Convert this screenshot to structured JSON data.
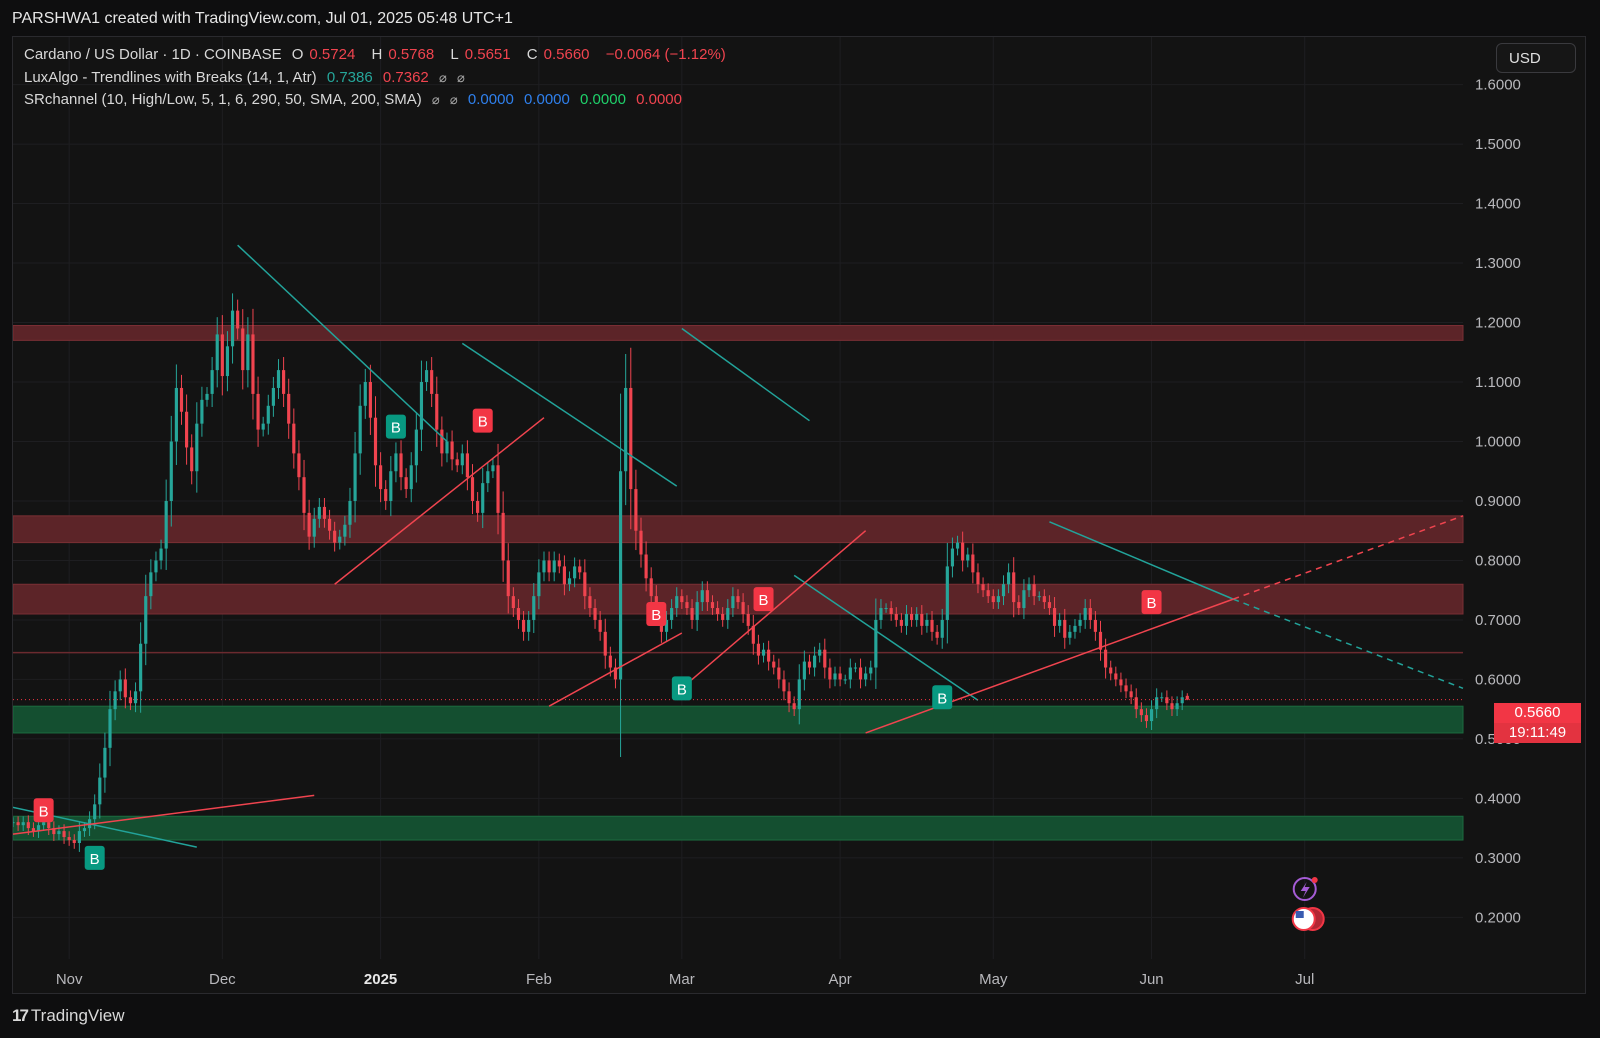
{
  "header": {
    "attribution": "PARSHWA1 created with TradingView.com, Jul 01, 2025 05:48 UTC+1"
  },
  "legend": {
    "symbol": "Cardano / US Dollar · 1D · COINBASE",
    "o_label": "O",
    "o_value": "0.5724",
    "h_label": "H",
    "h_value": "0.5768",
    "l_label": "L",
    "l_value": "0.5651",
    "c_label": "C",
    "c_value": "0.5660",
    "change": "−0.0064 (−1.12%)",
    "ind1_name": "LuxAlgo - Trendlines with Breaks (14, 1, Atr)",
    "ind1_v1": "0.7386",
    "ind1_v2": "0.7362",
    "ind2_name": "SRchannel (10, High/Low, 5, 1, 6, 290, 50, SMA, 200, SMA)",
    "ind2_v1": "0.0000",
    "ind2_v2": "0.0000",
    "ind2_v3": "0.0000",
    "ind2_v4": "0.0000",
    "hidden_icon": "⌀"
  },
  "currency_button": "USD",
  "price_label": {
    "price": "0.5660",
    "countdown": "19:11:49"
  },
  "footer": {
    "brand": "TradingView",
    "brand_mark": "17"
  },
  "colors": {
    "up": "#26a69a",
    "down": "#f0444f",
    "resistance_zone": "#5c2428",
    "support_zone": "#144f30",
    "trend_down": "#22a39a",
    "trend_up": "#f0444f",
    "background": "#131313"
  },
  "chart_data": {
    "type": "candlestick",
    "y_axis": {
      "ticks": [
        "1.6000",
        "1.5000",
        "1.4000",
        "1.3000",
        "1.2000",
        "1.1000",
        "1.0000",
        "0.9000",
        "0.8000",
        "0.7000",
        "0.6000",
        "0.5000",
        "0.4000",
        "0.3000",
        "0.2000"
      ],
      "ylim": [
        0.13,
        1.68
      ]
    },
    "x_axis": {
      "ticks": [
        {
          "label": "Nov",
          "date": "2024-11-01"
        },
        {
          "label": "Dec",
          "date": "2024-12-01"
        },
        {
          "label": "2025",
          "date": "2025-01-01",
          "bold": true
        },
        {
          "label": "Feb",
          "date": "2025-02-01"
        },
        {
          "label": "Mar",
          "date": "2025-03-01"
        },
        {
          "label": "Apr",
          "date": "2025-04-01"
        },
        {
          "label": "May",
          "date": "2025-05-01"
        },
        {
          "label": "Jun",
          "date": "2025-06-01"
        },
        {
          "label": "Jul",
          "date": "2025-07-01"
        }
      ],
      "xlim": [
        "2024-10-21",
        "2025-08-01"
      ]
    },
    "close_series": {
      "start_date": "2024-10-21",
      "values": [
        0.36,
        0.355,
        0.36,
        0.35,
        0.345,
        0.355,
        0.36,
        0.35,
        0.34,
        0.345,
        0.335,
        0.33,
        0.325,
        0.345,
        0.35,
        0.365,
        0.39,
        0.435,
        0.485,
        0.55,
        0.58,
        0.6,
        0.57,
        0.56,
        0.58,
        0.66,
        0.74,
        0.78,
        0.8,
        0.82,
        0.9,
        1.0,
        1.09,
        1.05,
        0.99,
        0.95,
        1.03,
        1.07,
        1.08,
        1.12,
        1.18,
        1.11,
        1.16,
        1.22,
        1.19,
        1.12,
        1.18,
        1.08,
        1.02,
        1.03,
        1.06,
        1.09,
        1.12,
        1.08,
        1.03,
        0.98,
        0.94,
        0.88,
        0.84,
        0.87,
        0.89,
        0.87,
        0.85,
        0.83,
        0.84,
        0.86,
        0.9,
        0.98,
        1.06,
        1.1,
        1.04,
        0.96,
        0.92,
        0.9,
        0.95,
        0.98,
        0.94,
        0.92,
        0.96,
        1.02,
        1.1,
        1.12,
        1.08,
        1.02,
        0.98,
        1.0,
        0.97,
        0.96,
        0.98,
        0.94,
        0.9,
        0.88,
        0.93,
        0.95,
        0.96,
        0.88,
        0.8,
        0.74,
        0.72,
        0.7,
        0.68,
        0.7,
        0.74,
        0.78,
        0.8,
        0.78,
        0.8,
        0.79,
        0.76,
        0.77,
        0.79,
        0.78,
        0.74,
        0.72,
        0.7,
        0.68,
        0.64,
        0.62,
        0.6,
        0.95,
        1.09,
        0.92,
        0.85,
        0.81,
        0.77,
        0.74,
        0.71,
        0.68,
        0.7,
        0.72,
        0.74,
        0.73,
        0.72,
        0.7,
        0.73,
        0.75,
        0.73,
        0.72,
        0.71,
        0.7,
        0.72,
        0.74,
        0.73,
        0.71,
        0.69,
        0.66,
        0.64,
        0.65,
        0.63,
        0.62,
        0.6,
        0.58,
        0.56,
        0.55,
        0.6,
        0.63,
        0.62,
        0.64,
        0.65,
        0.62,
        0.6,
        0.61,
        0.6,
        0.6,
        0.62,
        0.62,
        0.6,
        0.61,
        0.62,
        0.7,
        0.72,
        0.72,
        0.71,
        0.7,
        0.69,
        0.71,
        0.7,
        0.71,
        0.69,
        0.7,
        0.68,
        0.67,
        0.7,
        0.79,
        0.82,
        0.83,
        0.8,
        0.81,
        0.78,
        0.76,
        0.75,
        0.74,
        0.73,
        0.74,
        0.76,
        0.78,
        0.73,
        0.72,
        0.75,
        0.76,
        0.74,
        0.74,
        0.73,
        0.72,
        0.69,
        0.7,
        0.67,
        0.68,
        0.69,
        0.7,
        0.72,
        0.7,
        0.68,
        0.65,
        0.62,
        0.61,
        0.6,
        0.59,
        0.58,
        0.57,
        0.55,
        0.54,
        0.53,
        0.55,
        0.57,
        0.57,
        0.56,
        0.55,
        0.56,
        0.57,
        0.566
      ],
      "last": {
        "open": 0.5724,
        "high": 0.5768,
        "low": 0.5651,
        "close": 0.566
      }
    },
    "support_resistance_zones": [
      {
        "type": "resistance",
        "low": 1.17,
        "high": 1.195
      },
      {
        "type": "resistance",
        "low": 0.83,
        "high": 0.875
      },
      {
        "type": "resistance",
        "low": 0.71,
        "high": 0.76
      },
      {
        "type": "support",
        "low": 0.51,
        "high": 0.555
      },
      {
        "type": "support",
        "low": 0.33,
        "high": 0.37
      }
    ],
    "level_line": 0.645,
    "trendlines": [
      {
        "color": "down",
        "from": [
          "2024-12-04",
          1.33
        ],
        "to": [
          "2025-01-14",
          1.0
        ]
      },
      {
        "color": "down",
        "from": [
          "2025-01-17",
          1.165
        ],
        "to": [
          "2025-02-28",
          0.925
        ]
      },
      {
        "color": "down",
        "from": [
          "2025-03-01",
          1.19
        ],
        "to": [
          "2025-03-26",
          1.035
        ]
      },
      {
        "color": "down",
        "from": [
          "2025-03-23",
          0.775
        ],
        "to": [
          "2025-04-28",
          0.565
        ]
      },
      {
        "color": "down",
        "from": [
          "2025-05-12",
          0.865
        ],
        "to": [
          "2025-06-17",
          0.735
        ]
      },
      {
        "color": "down",
        "from": [
          "2025-06-17",
          0.735
        ],
        "to": [
          "2025-08-01",
          0.585
        ],
        "dashed": true
      },
      {
        "color": "down",
        "from": [
          "2024-10-21",
          0.385
        ],
        "to": [
          "2024-11-26",
          0.318
        ]
      },
      {
        "color": "up",
        "from": [
          "2024-12-23",
          0.76
        ],
        "to": [
          "2025-02-02",
          1.04
        ]
      },
      {
        "color": "up",
        "from": [
          "2025-02-03",
          0.555
        ],
        "to": [
          "2025-03-01",
          0.678
        ]
      },
      {
        "color": "up",
        "from": [
          "2025-02-28",
          0.578
        ],
        "to": [
          "2025-04-06",
          0.85
        ]
      },
      {
        "color": "up",
        "from": [
          "2025-04-06",
          0.51
        ],
        "to": [
          "2025-06-17",
          0.735
        ]
      },
      {
        "color": "up",
        "from": [
          "2025-06-17",
          0.735
        ],
        "to": [
          "2025-08-01",
          0.875
        ],
        "dashed": true
      },
      {
        "color": "up",
        "from": [
          "2024-10-21",
          0.34
        ],
        "to": [
          "2024-12-19",
          0.405
        ]
      }
    ],
    "signals": [
      {
        "label": "B",
        "kind": "bearish",
        "date": "2024-10-27",
        "price": 0.38
      },
      {
        "label": "B",
        "kind": "bullish",
        "date": "2024-11-06",
        "price": 0.3
      },
      {
        "label": "B",
        "kind": "bullish",
        "date": "2025-01-04",
        "price": 1.025
      },
      {
        "label": "B",
        "kind": "bearish",
        "date": "2025-01-21",
        "price": 1.035
      },
      {
        "label": "B",
        "kind": "bearish",
        "date": "2025-02-24",
        "price": 0.71
      },
      {
        "label": "B",
        "kind": "bullish",
        "date": "2025-03-01",
        "price": 0.585
      },
      {
        "label": "B",
        "kind": "bearish",
        "date": "2025-03-17",
        "price": 0.735
      },
      {
        "label": "B",
        "kind": "bullish",
        "date": "2025-04-21",
        "price": 0.57
      },
      {
        "label": "B",
        "kind": "bearish",
        "date": "2025-06-01",
        "price": 0.73
      }
    ]
  }
}
